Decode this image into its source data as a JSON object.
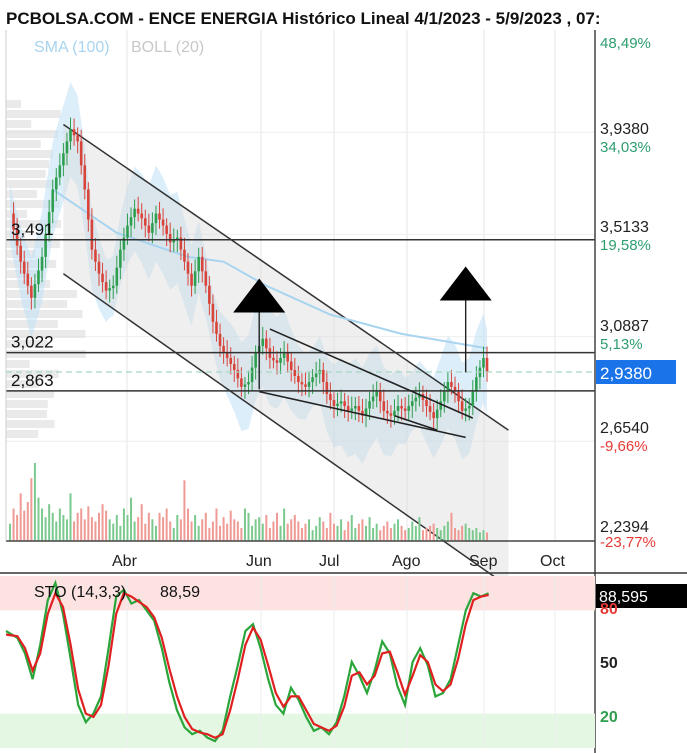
{
  "header": {
    "title": "PCBOLSA.COM - ENCE ENERGIA Histórico Lineal 4/1/2023 - 5/9/2023 , 07:",
    "sma_label": "SMA (100)",
    "boll_label": "BOLL (20)"
  },
  "colors": {
    "sma": "#a8d4f0",
    "boll_band": "#bfe0f5",
    "up": "#2e9e4f",
    "down": "#d9443a",
    "current_price_bg": "#1a73e8",
    "overbought_zone": "#fde2e2",
    "oversold_zone": "#e3f7e3",
    "sto_k": "#2aa53a",
    "sto_d": "#e02020"
  },
  "levels": [
    {
      "label": "3,491",
      "value": 3.491
    },
    {
      "label": "3,022",
      "value": 3.022
    },
    {
      "label": "2,863",
      "value": 2.863
    }
  ],
  "y_axis": [
    {
      "label": "48,49%",
      "kind": "pct_up"
    },
    {
      "label": "3,9380",
      "kind": "price_bold"
    },
    {
      "label": "34,03%",
      "kind": "pct_up_bold"
    },
    {
      "label": "3,5133",
      "kind": "price"
    },
    {
      "label": "19,58%",
      "kind": "pct_up"
    },
    {
      "label": "3,0887",
      "kind": "price"
    },
    {
      "label": "5,13%",
      "kind": "pct_up"
    },
    {
      "label": "2,6540",
      "kind": "price_bold"
    },
    {
      "label": "-9,66%",
      "kind": "pct_down_bold"
    },
    {
      "label": "2,2394",
      "kind": "price"
    },
    {
      "label": "-23,77%",
      "kind": "pct_down"
    }
  ],
  "current_price": "2,9380",
  "x_axis": [
    "Abr",
    "Jun",
    "Jul",
    "Ago",
    "Sep",
    "Oct"
  ],
  "chart_data": [
    {
      "type": "candlestick",
      "title": "PCBOLSA.COM - ENCE ENERGIA Histórico Lineal 4/1/2023 - 5/9/2023 , 07:",
      "x_labels": [
        "Abr",
        "Jun",
        "Jul",
        "Ago",
        "Sep",
        "Oct"
      ],
      "ylim": [
        2.2394,
        4.3626
      ],
      "anchors": [
        [
          0,
          3.6
        ],
        [
          3,
          3.4
        ],
        [
          6,
          3.25
        ],
        [
          9,
          3.42
        ],
        [
          12,
          3.7
        ],
        [
          14,
          3.8
        ],
        [
          17,
          3.95
        ],
        [
          19,
          3.9
        ],
        [
          21,
          3.7
        ],
        [
          23,
          3.45
        ],
        [
          25,
          3.35
        ],
        [
          27,
          3.28
        ],
        [
          29,
          3.3
        ],
        [
          31,
          3.45
        ],
        [
          33,
          3.55
        ],
        [
          35,
          3.62
        ],
        [
          37,
          3.58
        ],
        [
          39,
          3.52
        ],
        [
          41,
          3.6
        ],
        [
          43,
          3.55
        ],
        [
          45,
          3.48
        ],
        [
          47,
          3.5
        ],
        [
          49,
          3.4
        ],
        [
          51,
          3.3
        ],
        [
          53,
          3.42
        ],
        [
          55,
          3.3
        ],
        [
          57,
          3.15
        ],
        [
          59,
          3.05
        ],
        [
          61,
          3.0
        ],
        [
          63,
          2.95
        ],
        [
          65,
          2.88
        ],
        [
          67,
          2.9
        ],
        [
          69,
          3.02
        ],
        [
          71,
          3.08
        ],
        [
          73,
          3.0
        ],
        [
          75,
          2.98
        ],
        [
          77,
          3.02
        ],
        [
          79,
          2.95
        ],
        [
          81,
          2.9
        ],
        [
          83,
          2.88
        ],
        [
          85,
          2.92
        ],
        [
          87,
          2.95
        ],
        [
          89,
          2.85
        ],
        [
          91,
          2.8
        ],
        [
          93,
          2.82
        ],
        [
          95,
          2.78
        ],
        [
          97,
          2.8
        ],
        [
          99,
          2.76
        ],
        [
          101,
          2.82
        ],
        [
          103,
          2.86
        ],
        [
          105,
          2.78
        ],
        [
          107,
          2.76
        ],
        [
          109,
          2.8
        ],
        [
          111,
          2.78
        ],
        [
          113,
          2.82
        ],
        [
          115,
          2.85
        ],
        [
          117,
          2.8
        ],
        [
          119,
          2.75
        ],
        [
          121,
          2.82
        ],
        [
          123,
          2.9
        ],
        [
          125,
          2.86
        ],
        [
          127,
          2.78
        ],
        [
          129,
          2.8
        ],
        [
          131,
          2.92
        ],
        [
          133,
          3.0
        ],
        [
          134,
          2.94
        ]
      ],
      "sma_100": [
        [
          12,
          3.7
        ],
        [
          30,
          3.52
        ],
        [
          50,
          3.42
        ],
        [
          60,
          3.4
        ],
        [
          72,
          3.3
        ],
        [
          90,
          3.18
        ],
        [
          110,
          3.1
        ],
        [
          134,
          3.04
        ]
      ],
      "channel": {
        "upper": [
          [
            15,
            3.97
          ],
          [
            140,
            2.7
          ]
        ],
        "lower": [
          [
            15,
            3.35
          ],
          [
            140,
            2.05
          ]
        ]
      },
      "support_lines": [
        [
          [
            73,
            3.12
          ],
          [
            130,
            2.75
          ]
        ],
        [
          [
            70,
            2.86
          ],
          [
            128,
            2.67
          ]
        ],
        [
          [
            108,
            2.76
          ],
          [
            120,
            2.7
          ]
        ]
      ],
      "arrows": [
        {
          "x": 70,
          "from": 2.87,
          "to": 3.33
        },
        {
          "x": 128,
          "from": 2.94,
          "to": 3.38
        }
      ],
      "volume": [
        16,
        30,
        24,
        44,
        28,
        36,
        58,
        72,
        40,
        30,
        22,
        34,
        26,
        18,
        30,
        24,
        20,
        44,
        18,
        26,
        30,
        20,
        32,
        22,
        18,
        26,
        34,
        28,
        20,
        16,
        24,
        14,
        30,
        24,
        40,
        18,
        22,
        34,
        16,
        26,
        20,
        14,
        26,
        22,
        30,
        18,
        12,
        24,
        20,
        56,
        30,
        18,
        24,
        14,
        20,
        26,
        12,
        18,
        30,
        14,
        22,
        16,
        28,
        20,
        18,
        12,
        30,
        26,
        14,
        20,
        22,
        16,
        24,
        12,
        18,
        26,
        14,
        30,
        16,
        20,
        24,
        18,
        12,
        16,
        20,
        10,
        14,
        22,
        18,
        12,
        26,
        16,
        14,
        20,
        10,
        18,
        24,
        12,
        16,
        20,
        14,
        22,
        12,
        16,
        10,
        14,
        18,
        12,
        16,
        20,
        14,
        10,
        12,
        18,
        14,
        22,
        10,
        12,
        14,
        16,
        12,
        10,
        14,
        18,
        26,
        12,
        10,
        14,
        16,
        12,
        10,
        12,
        8,
        10,
        8
      ]
    },
    {
      "type": "line",
      "title": "STO (14,3,3)",
      "ylim": [
        0,
        100
      ],
      "yticks": [
        "80",
        "50",
        "20"
      ],
      "zones": {
        "overbought": [
          80,
          100
        ],
        "oversold": [
          0,
          20
        ]
      },
      "last_value": "88,59",
      "last_value_box": "88,595",
      "series": [
        {
          "name": "%K",
          "anchors": [
            [
              0,
              68
            ],
            [
              3,
              64
            ],
            [
              5,
              55
            ],
            [
              7,
              40
            ],
            [
              9,
              60
            ],
            [
              11,
              86
            ],
            [
              13,
              96
            ],
            [
              15,
              78
            ],
            [
              17,
              52
            ],
            [
              19,
              25
            ],
            [
              21,
              15
            ],
            [
              23,
              20
            ],
            [
              25,
              30
            ],
            [
              27,
              58
            ],
            [
              29,
              88
            ],
            [
              31,
              92
            ],
            [
              33,
              84
            ],
            [
              35,
              86
            ],
            [
              37,
              80
            ],
            [
              39,
              74
            ],
            [
              41,
              58
            ],
            [
              43,
              38
            ],
            [
              45,
              22
            ],
            [
              47,
              12
            ],
            [
              49,
              8
            ],
            [
              51,
              10
            ],
            [
              53,
              6
            ],
            [
              55,
              4
            ],
            [
              57,
              10
            ],
            [
              59,
              30
            ],
            [
              61,
              48
            ],
            [
              63,
              68
            ],
            [
              65,
              72
            ],
            [
              67,
              58
            ],
            [
              69,
              40
            ],
            [
              71,
              25
            ],
            [
              73,
              20
            ],
            [
              75,
              35
            ],
            [
              77,
              28
            ],
            [
              79,
              18
            ],
            [
              81,
              10
            ],
            [
              83,
              12
            ],
            [
              85,
              8
            ],
            [
              87,
              15
            ],
            [
              89,
              30
            ],
            [
              91,
              50
            ],
            [
              93,
              42
            ],
            [
              95,
              32
            ],
            [
              97,
              45
            ],
            [
              99,
              62
            ],
            [
              101,
              55
            ],
            [
              103,
              36
            ],
            [
              105,
              25
            ],
            [
              107,
              50
            ],
            [
              109,
              58
            ],
            [
              111,
              48
            ],
            [
              113,
              30
            ],
            [
              115,
              32
            ],
            [
              117,
              40
            ],
            [
              119,
              60
            ],
            [
              121,
              80
            ],
            [
              123,
              90
            ],
            [
              125,
              88
            ],
            [
              127,
              90
            ]
          ]
        },
        {
          "name": "%D",
          "anchors": [
            [
              0,
              66
            ],
            [
              3,
              65
            ],
            [
              5,
              58
            ],
            [
              7,
              45
            ],
            [
              9,
              55
            ],
            [
              11,
              78
            ],
            [
              13,
              90
            ],
            [
              15,
              82
            ],
            [
              17,
              60
            ],
            [
              19,
              34
            ],
            [
              21,
              20
            ],
            [
              23,
              18
            ],
            [
              25,
              25
            ],
            [
              27,
              48
            ],
            [
              29,
              78
            ],
            [
              31,
              90
            ],
            [
              33,
              88
            ],
            [
              35,
              85
            ],
            [
              37,
              82
            ],
            [
              39,
              76
            ],
            [
              41,
              64
            ],
            [
              43,
              46
            ],
            [
              45,
              30
            ],
            [
              47,
              18
            ],
            [
              49,
              11
            ],
            [
              51,
              9
            ],
            [
              53,
              8
            ],
            [
              55,
              6
            ],
            [
              57,
              8
            ],
            [
              59,
              22
            ],
            [
              61,
              40
            ],
            [
              63,
              60
            ],
            [
              65,
              70
            ],
            [
              67,
              63
            ],
            [
              69,
              48
            ],
            [
              71,
              32
            ],
            [
              73,
              24
            ],
            [
              75,
              30
            ],
            [
              77,
              30
            ],
            [
              79,
              22
            ],
            [
              81,
              14
            ],
            [
              83,
              12
            ],
            [
              85,
              10
            ],
            [
              87,
              13
            ],
            [
              89,
              24
            ],
            [
              91,
              42
            ],
            [
              93,
              44
            ],
            [
              95,
              37
            ],
            [
              97,
              42
            ],
            [
              99,
              55
            ],
            [
              101,
              56
            ],
            [
              103,
              44
            ],
            [
              105,
              31
            ],
            [
              107,
              42
            ],
            [
              109,
              54
            ],
            [
              111,
              50
            ],
            [
              113,
              37
            ],
            [
              115,
              33
            ],
            [
              117,
              37
            ],
            [
              119,
              52
            ],
            [
              121,
              72
            ],
            [
              123,
              86
            ],
            [
              125,
              88
            ],
            [
              127,
              89
            ]
          ]
        }
      ]
    }
  ]
}
